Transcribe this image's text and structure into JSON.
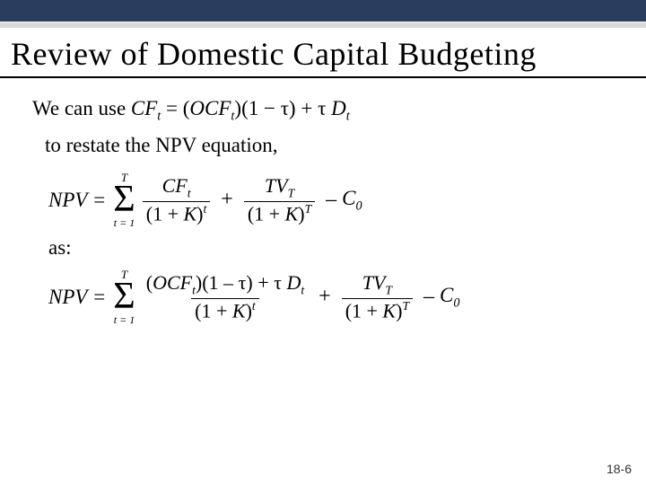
{
  "colors": {
    "top_bar": "#2a3d5f",
    "grey_bar": "#d9d9d9",
    "text": "#000000",
    "background": "#ffffff"
  },
  "title": "Review of Domestic Capital Budgeting",
  "body": {
    "line1_prefix": "We can use ",
    "cf_def_lhs": "CF",
    "cf_def_sub": "t",
    "eq_sign": " = ",
    "ocf": "OCF",
    "one_minus_tau": "(1 − τ)",
    "plus": " + ",
    "tau": "τ ",
    "D": "D",
    "line2": "to restate the NPV equation,"
  },
  "eq1": {
    "lhs": "NPV =",
    "sigma_top": "T",
    "sigma_bot": "t = 1",
    "frac1_num": "CF",
    "frac1_num_sub": "t",
    "frac1_den_pre": "(1 + ",
    "K": "K",
    "frac1_den_post": ")",
    "frac1_den_sup": "t",
    "frac2_num": "TV",
    "frac2_num_sub": "T",
    "frac2_den_sup": "T",
    "minus": " – ",
    "C": "C",
    "C_sub": "0"
  },
  "as_label": "as:",
  "eq2": {
    "lhs": "NPV =",
    "sigma_top": "T",
    "sigma_bot": "t = 1",
    "num_ocf": "OCF",
    "num_sub": "t",
    "num_tail": ")(1 – τ) + τ ",
    "num_D": "D",
    "den_pre": "(1 + ",
    "K": "K",
    "den_post": ")",
    "den_sup": "t",
    "frac2_num": "TV",
    "frac2_num_sub": "T",
    "frac2_den_sup": "T",
    "minus": " – ",
    "C": "C",
    "C_sub": "0"
  },
  "slide_number": "18-6"
}
